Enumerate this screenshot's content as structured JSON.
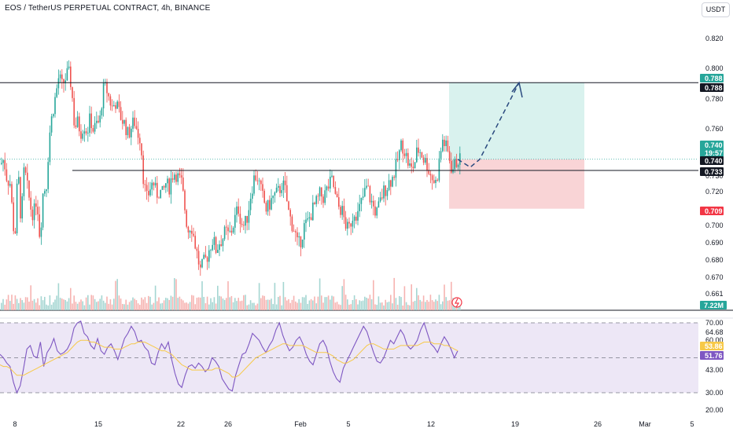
{
  "header": {
    "title": "EOS / TetherUS PERPETUAL CONTRACT, 4h, BINANCE",
    "currency_button": "USDT"
  },
  "colors": {
    "up": "#26a69a",
    "down": "#ef5350",
    "rsi_line": "#7e57c2",
    "rsi_ma": "#f7c948",
    "rsi_band": "#ede7f6",
    "target_zone": "#d9f2ee",
    "stop_zone": "#f9d4d6",
    "projection": "#2a4a7f",
    "resistance_line": "#131722"
  },
  "price_axis": {
    "ticks": [
      "0.820",
      "0.800",
      "0.780",
      "0.760",
      "0.740",
      "0.730",
      "0.720",
      "0.700",
      "0.690",
      "0.680",
      "0.670",
      "0.661"
    ],
    "badges": [
      {
        "value": "0.788",
        "color": "#26a69a"
      },
      {
        "value": "0.788",
        "color": "#131722"
      },
      {
        "value": "0.740",
        "sub": "19:57",
        "color": "#26a69a"
      },
      {
        "value": "0.740",
        "color": "#131722"
      },
      {
        "value": "0.733",
        "color": "#131722"
      },
      {
        "value": "0.709",
        "color": "#f23645"
      }
    ],
    "volume_badge": {
      "value": "7.22M",
      "color": "#26a69a"
    }
  },
  "rsi_axis": {
    "ticks": [
      "70.00",
      "64.68",
      "60.00",
      "43.00",
      "30.00",
      "20.00"
    ],
    "badges": [
      {
        "value": "53.86",
        "color": "#f7c948"
      },
      {
        "value": "51.76",
        "color": "#7e57c2"
      }
    ]
  },
  "time_axis": {
    "labels": [
      "8",
      "15",
      "22",
      "26",
      "Feb",
      "5",
      "12",
      "19",
      "26",
      "Mar",
      "5"
    ]
  },
  "chart_data": [
    {
      "type": "candlestick",
      "title": "EOS / TetherUS PERPETUAL CONTRACT, 4h, BINANCE",
      "ylim": [
        0.655,
        0.828
      ],
      "segments": [
        [
          0,
          0.737
        ],
        [
          4,
          0.74
        ],
        [
          8,
          0.728
        ],
        [
          12,
          0.725
        ],
        [
          16,
          0.7
        ],
        [
          18,
          0.688
        ],
        [
          22,
          0.735
        ],
        [
          26,
          0.7
        ],
        [
          30,
          0.735
        ],
        [
          34,
          0.722
        ],
        [
          38,
          0.71
        ],
        [
          42,
          0.705
        ],
        [
          46,
          0.717
        ],
        [
          50,
          0.69
        ],
        [
          54,
          0.72
        ],
        [
          58,
          0.723
        ],
        [
          62,
          0.755
        ],
        [
          66,
          0.77
        ],
        [
          70,
          0.78
        ],
        [
          74,
          0.792
        ],
        [
          78,
          0.786
        ],
        [
          82,
          0.79
        ],
        [
          86,
          0.795
        ],
        [
          90,
          0.786
        ],
        [
          94,
          0.76
        ],
        [
          98,
          0.763
        ],
        [
          102,
          0.757
        ],
        [
          106,
          0.762
        ],
        [
          110,
          0.757
        ],
        [
          114,
          0.766
        ],
        [
          118,
          0.758
        ],
        [
          122,
          0.762
        ],
        [
          126,
          0.763
        ],
        [
          130,
          0.783
        ],
        [
          134,
          0.785
        ],
        [
          138,
          0.778
        ],
        [
          142,
          0.772
        ],
        [
          146,
          0.776
        ],
        [
          150,
          0.77
        ],
        [
          154,
          0.765
        ],
        [
          158,
          0.762
        ],
        [
          162,
          0.755
        ],
        [
          166,
          0.76
        ],
        [
          170,
          0.764
        ],
        [
          174,
          0.757
        ],
        [
          178,
          0.753
        ],
        [
          182,
          0.725
        ],
        [
          186,
          0.715
        ],
        [
          190,
          0.722
        ],
        [
          194,
          0.726
        ],
        [
          198,
          0.718
        ],
        [
          202,
          0.72
        ],
        [
          206,
          0.718
        ],
        [
          210,
          0.725
        ],
        [
          214,
          0.722
        ],
        [
          218,
          0.73
        ],
        [
          222,
          0.732
        ],
        [
          226,
          0.728
        ],
        [
          230,
          0.725
        ],
        [
          234,
          0.71
        ],
        [
          238,
          0.695
        ],
        [
          242,
          0.7
        ],
        [
          246,
          0.69
        ],
        [
          250,
          0.68
        ],
        [
          254,
          0.67
        ],
        [
          258,
          0.675
        ],
        [
          262,
          0.678
        ],
        [
          266,
          0.685
        ],
        [
          270,
          0.69
        ],
        [
          274,
          0.683
        ],
        [
          278,
          0.688
        ],
        [
          282,
          0.69
        ],
        [
          286,
          0.695
        ],
        [
          290,
          0.692
        ],
        [
          294,
          0.696
        ],
        [
          298,
          0.703
        ],
        [
          302,
          0.71
        ],
        [
          306,
          0.7
        ],
        [
          310,
          0.698
        ],
        [
          314,
          0.705
        ],
        [
          318,
          0.718
        ],
        [
          322,
          0.728
        ],
        [
          326,
          0.73
        ],
        [
          330,
          0.722
        ],
        [
          334,
          0.715
        ],
        [
          338,
          0.708
        ],
        [
          342,
          0.712
        ],
        [
          346,
          0.716
        ],
        [
          350,
          0.718
        ],
        [
          354,
          0.72
        ],
        [
          358,
          0.725
        ],
        [
          362,
          0.72
        ],
        [
          366,
          0.707
        ],
        [
          370,
          0.7
        ],
        [
          374,
          0.695
        ],
        [
          378,
          0.685
        ],
        [
          382,
          0.69
        ],
        [
          386,
          0.698
        ],
        [
          390,
          0.7
        ],
        [
          394,
          0.705
        ],
        [
          398,
          0.71
        ],
        [
          402,
          0.713
        ],
        [
          406,
          0.718
        ],
        [
          410,
          0.716
        ],
        [
          414,
          0.72
        ],
        [
          418,
          0.724
        ],
        [
          422,
          0.727
        ],
        [
          426,
          0.715
        ],
        [
          430,
          0.71
        ],
        [
          434,
          0.708
        ],
        [
          438,
          0.7
        ],
        [
          442,
          0.695
        ],
        [
          446,
          0.702
        ],
        [
          450,
          0.708
        ],
        [
          454,
          0.705
        ],
        [
          458,
          0.712
        ],
        [
          462,
          0.718
        ],
        [
          466,
          0.723
        ],
        [
          470,
          0.715
        ],
        [
          474,
          0.71
        ],
        [
          478,
          0.706
        ],
        [
          482,
          0.712
        ],
        [
          486,
          0.719
        ],
        [
          490,
          0.722
        ],
        [
          494,
          0.726
        ],
        [
          498,
          0.728
        ],
        [
          502,
          0.734
        ],
        [
          506,
          0.742
        ],
        [
          510,
          0.75
        ],
        [
          514,
          0.745
        ],
        [
          518,
          0.738
        ],
        [
          522,
          0.733
        ],
        [
          526,
          0.737
        ],
        [
          530,
          0.746
        ],
        [
          534,
          0.745
        ],
        [
          538,
          0.74
        ],
        [
          542,
          0.737
        ],
        [
          546,
          0.731
        ],
        [
          550,
          0.727
        ],
        [
          554,
          0.725
        ],
        [
          558,
          0.74
        ],
        [
          562,
          0.752
        ],
        [
          566,
          0.748
        ],
        [
          570,
          0.742
        ],
        [
          574,
          0.733
        ],
        [
          578,
          0.737
        ],
        [
          582,
          0.74
        ],
        [
          586,
          0.739
        ]
      ],
      "trade_setup": {
        "entry": 0.74,
        "target": 0.788,
        "stop": 0.709,
        "support_line": 0.733
      },
      "projection": [
        [
          582,
          0.74
        ],
        [
          598,
          0.735
        ],
        [
          610,
          0.74
        ],
        [
          660,
          0.788
        ]
      ]
    },
    {
      "type": "line",
      "title": "",
      "ylim": [
        16,
        74
      ],
      "reference_levels": [
        70,
        50,
        30
      ],
      "series": [
        {
          "values": [
            52,
            50,
            47,
            45,
            36,
            30,
            34,
            44,
            55,
            57,
            51,
            50,
            59,
            45,
            53,
            56,
            61,
            54,
            52,
            53,
            55,
            59,
            67,
            70,
            71,
            64,
            62,
            57,
            55,
            61,
            54,
            52,
            56,
            58,
            54,
            49,
            55,
            61,
            64,
            68,
            65,
            59,
            60,
            56,
            54,
            47,
            46,
            53,
            58,
            55,
            59,
            49,
            41,
            35,
            33,
            40,
            45,
            46,
            44,
            47,
            45,
            42,
            44,
            50,
            48,
            45,
            38,
            35,
            32,
            31,
            40,
            46,
            52,
            53,
            58,
            64,
            62,
            60,
            56,
            53,
            57,
            60,
            66,
            70,
            63,
            58,
            54,
            56,
            60,
            62,
            58,
            52,
            48,
            46,
            52,
            58,
            60,
            56,
            48,
            42,
            38,
            36,
            44,
            48,
            52,
            56,
            60,
            64,
            68,
            65,
            59,
            53,
            48,
            47,
            50,
            55,
            60,
            58,
            62,
            66,
            63,
            57,
            55,
            57,
            60,
            66,
            70,
            64,
            58,
            56,
            53,
            58,
            62,
            59,
            55,
            50,
            54
          ]
        },
        {
          "values": [
            46,
            45,
            45,
            44,
            42,
            40,
            40,
            40,
            41,
            42,
            43,
            44,
            45,
            46,
            47,
            48,
            49,
            50,
            51,
            52,
            53,
            55,
            57,
            59,
            60,
            60,
            60,
            59,
            59,
            58,
            57,
            56,
            56,
            56,
            55,
            55,
            55,
            56,
            57,
            58,
            58,
            59,
            59,
            59,
            58,
            57,
            56,
            55,
            54,
            54,
            53,
            52,
            50,
            48,
            46,
            45,
            44,
            43,
            43,
            43,
            43,
            43,
            43,
            43,
            44,
            44,
            43,
            42,
            41,
            39,
            39,
            40,
            42,
            44,
            46,
            48,
            50,
            51,
            52,
            53,
            54,
            55,
            56,
            57,
            58,
            58,
            57,
            57,
            57,
            57,
            57,
            56,
            55,
            54,
            53,
            53,
            53,
            53,
            52,
            51,
            49,
            48,
            47,
            47,
            48,
            49,
            51,
            53,
            55,
            57,
            58,
            58,
            57,
            56,
            55,
            55,
            55,
            55,
            56,
            57,
            57,
            57,
            57,
            57,
            57,
            58,
            59,
            59,
            59,
            58,
            58,
            58,
            57,
            57,
            56,
            55,
            54
          ]
        }
      ]
    }
  ]
}
